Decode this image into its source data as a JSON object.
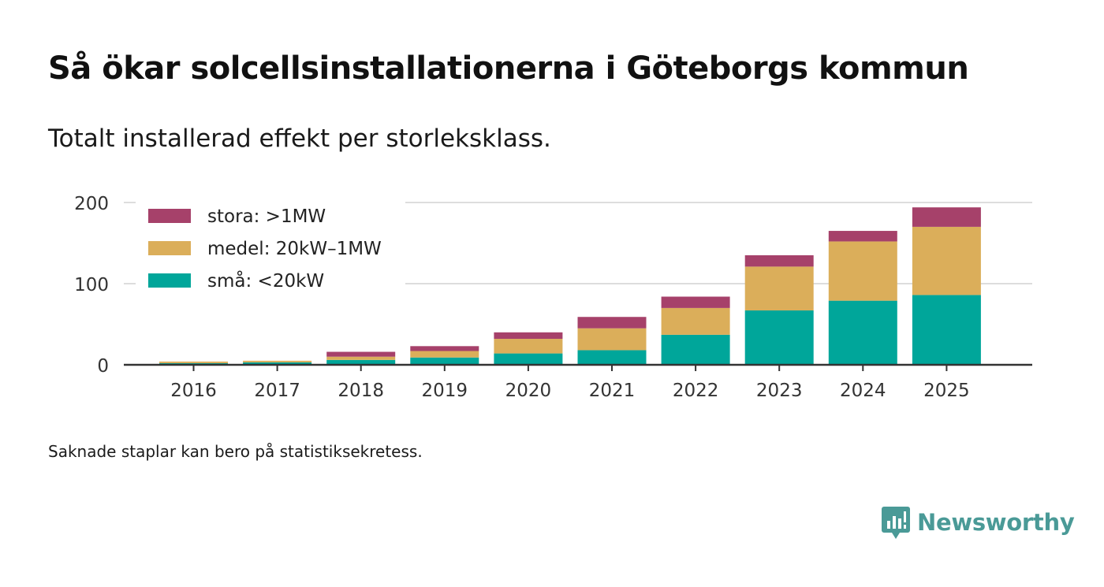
{
  "title": "Så ökar solcellsinstallationerna i Göteborgs kommun",
  "subtitle": "Totalt installerad effekt per storleksklass.",
  "footnote": "Saknade staplar kan bero på statistiksekretess.",
  "brand": {
    "name": "Newsworthy",
    "icon": "newsworthy-logo-icon",
    "color": "#4a9a97"
  },
  "chart_data": {
    "type": "bar",
    "stacked": true,
    "title": "Så ökar solcellsinstallationerna i Göteborgs kommun",
    "subtitle": "Totalt installerad effekt per storleksklass.",
    "xlabel": "",
    "ylabel": "",
    "categories": [
      "2016",
      "2017",
      "2018",
      "2019",
      "2020",
      "2021",
      "2022",
      "2023",
      "2024",
      "2025"
    ],
    "ylim": [
      0,
      200
    ],
    "yticks": [
      0,
      100,
      200
    ],
    "grid": true,
    "legend_position": "top-left",
    "series": [
      {
        "name": "små: <20kW",
        "color": "#00a69a",
        "values": [
          2,
          3,
          6,
          9,
          14,
          18,
          37,
          67,
          79,
          86
        ]
      },
      {
        "name": "medel: 20kW–1MW",
        "color": "#dbae5a",
        "values": [
          2,
          2,
          4,
          8,
          18,
          27,
          33,
          54,
          73,
          84
        ]
      },
      {
        "name": "stora: >1MW",
        "color": "#a6416a",
        "values": [
          0,
          0,
          6,
          6,
          8,
          14,
          14,
          14,
          13,
          24
        ]
      }
    ]
  }
}
